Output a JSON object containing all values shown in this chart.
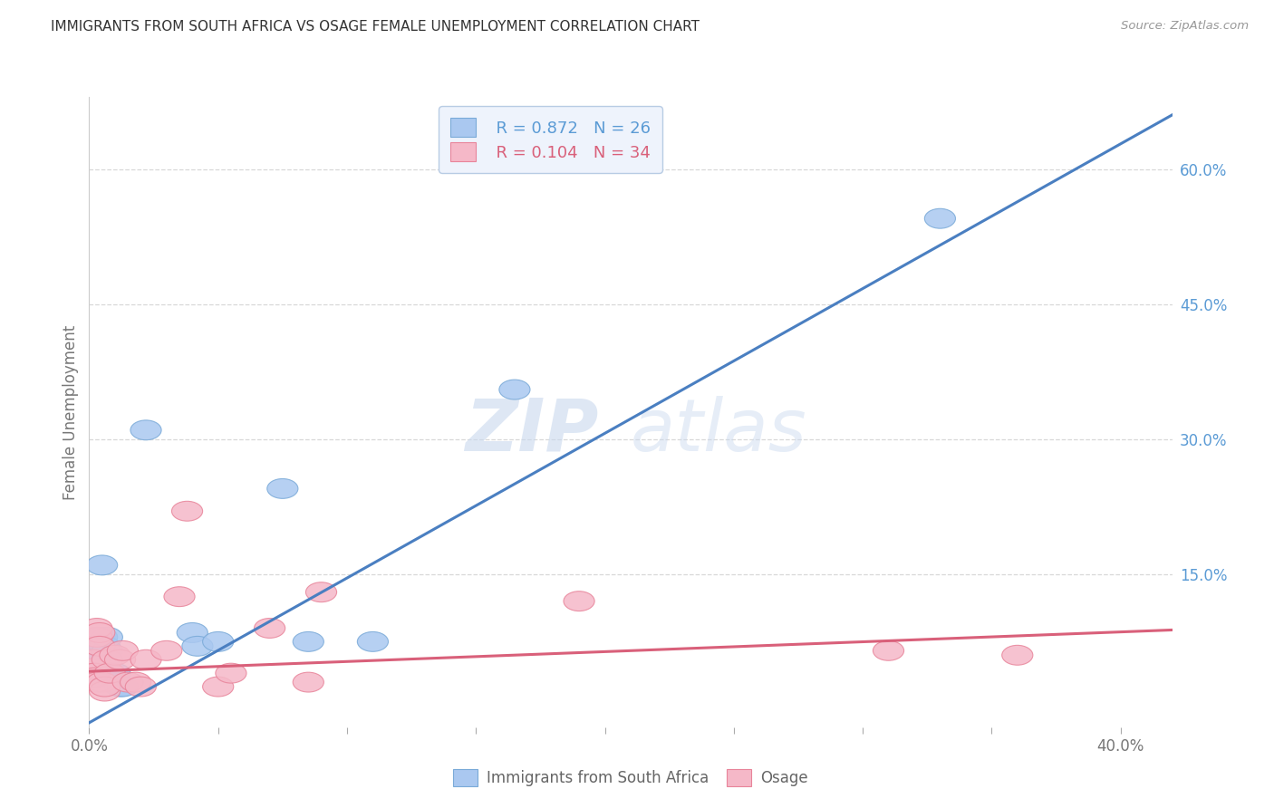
{
  "title": "IMMIGRANTS FROM SOUTH AFRICA VS OSAGE FEMALE UNEMPLOYMENT CORRELATION CHART",
  "source": "Source: ZipAtlas.com",
  "ylabel": "Female Unemployment",
  "xlim": [
    0.0,
    0.42
  ],
  "ylim": [
    -0.02,
    0.68
  ],
  "xticks": [
    0.0,
    0.05,
    0.1,
    0.15,
    0.2,
    0.25,
    0.3,
    0.35,
    0.4
  ],
  "xticklabels": [
    "0.0%",
    "",
    "",
    "",
    "",
    "",
    "",
    "",
    "40.0%"
  ],
  "yticks_right": [
    0.0,
    0.15,
    0.3,
    0.45,
    0.6
  ],
  "yticklabels_right": [
    "",
    "15.0%",
    "30.0%",
    "45.0%",
    "60.0%"
  ],
  "blue_fill": "#aac8f0",
  "pink_fill": "#f5b8c8",
  "blue_edge": "#7aaad8",
  "pink_edge": "#e8849a",
  "blue_line": "#4a7fc1",
  "pink_line": "#d9607a",
  "legend_box_color": "#eef3fc",
  "legend_border_color": "#b8cce4",
  "R_blue": 0.872,
  "N_blue": 26,
  "R_pink": 0.104,
  "N_pink": 34,
  "watermark_zip": "ZIP",
  "watermark_atlas": "atlas",
  "blue_scatter": [
    [
      0.001,
      0.055
    ],
    [
      0.002,
      0.045
    ],
    [
      0.002,
      0.035
    ],
    [
      0.003,
      0.08
    ],
    [
      0.003,
      0.07
    ],
    [
      0.004,
      0.065
    ],
    [
      0.004,
      0.075
    ],
    [
      0.005,
      0.08
    ],
    [
      0.005,
      0.16
    ],
    [
      0.006,
      0.07
    ],
    [
      0.007,
      0.065
    ],
    [
      0.007,
      0.08
    ],
    [
      0.008,
      0.04
    ],
    [
      0.008,
      0.035
    ],
    [
      0.01,
      0.04
    ],
    [
      0.012,
      0.025
    ],
    [
      0.013,
      0.025
    ],
    [
      0.022,
      0.31
    ],
    [
      0.04,
      0.085
    ],
    [
      0.042,
      0.07
    ],
    [
      0.05,
      0.075
    ],
    [
      0.075,
      0.245
    ],
    [
      0.085,
      0.075
    ],
    [
      0.11,
      0.075
    ],
    [
      0.165,
      0.355
    ],
    [
      0.33,
      0.545
    ]
  ],
  "pink_scatter": [
    [
      0.001,
      0.04
    ],
    [
      0.001,
      0.035
    ],
    [
      0.001,
      0.045
    ],
    [
      0.002,
      0.055
    ],
    [
      0.002,
      0.04
    ],
    [
      0.002,
      0.035
    ],
    [
      0.003,
      0.03
    ],
    [
      0.003,
      0.08
    ],
    [
      0.003,
      0.09
    ],
    [
      0.004,
      0.085
    ],
    [
      0.004,
      0.07
    ],
    [
      0.005,
      0.03
    ],
    [
      0.006,
      0.02
    ],
    [
      0.006,
      0.025
    ],
    [
      0.007,
      0.055
    ],
    [
      0.008,
      0.04
    ],
    [
      0.01,
      0.06
    ],
    [
      0.012,
      0.055
    ],
    [
      0.013,
      0.065
    ],
    [
      0.015,
      0.03
    ],
    [
      0.018,
      0.03
    ],
    [
      0.02,
      0.025
    ],
    [
      0.022,
      0.055
    ],
    [
      0.03,
      0.065
    ],
    [
      0.035,
      0.125
    ],
    [
      0.038,
      0.22
    ],
    [
      0.05,
      0.025
    ],
    [
      0.055,
      0.04
    ],
    [
      0.07,
      0.09
    ],
    [
      0.085,
      0.03
    ],
    [
      0.09,
      0.13
    ],
    [
      0.19,
      0.12
    ],
    [
      0.31,
      0.065
    ],
    [
      0.36,
      0.06
    ]
  ],
  "blue_trendline": [
    [
      0.0,
      -0.015
    ],
    [
      0.42,
      0.66
    ]
  ],
  "pink_trendline": [
    [
      0.0,
      0.042
    ],
    [
      0.42,
      0.088
    ]
  ],
  "background_color": "#ffffff",
  "grid_color": "#d8d8d8"
}
